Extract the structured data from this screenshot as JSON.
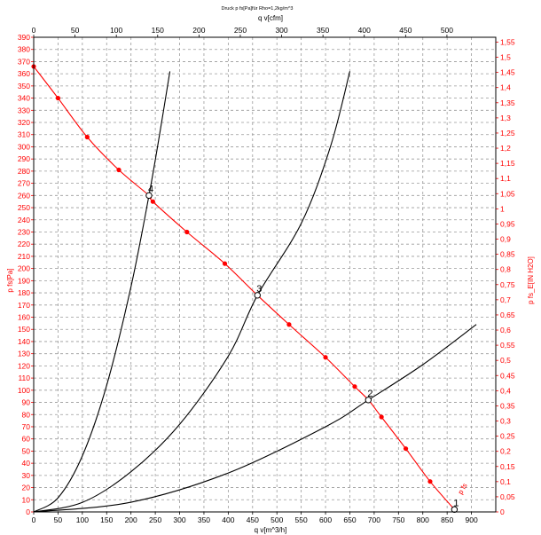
{
  "chart_data": {
    "type": "line",
    "title": "Druck p fs[Pa]für Rho=1,2kg/m^3",
    "xlabel": "q v[m^3/h]",
    "x2label": "q v[cfm]",
    "ylabel": "p fs[Pa]",
    "y2label": "p fs_E[IN H2O]",
    "xlim": [
      0,
      950
    ],
    "ylim": [
      0,
      390
    ],
    "x2lim": [
      0,
      559.1
    ],
    "y2lim": [
      0,
      1.566
    ],
    "x_ticks": [
      0,
      50,
      100,
      150,
      200,
      250,
      300,
      350,
      400,
      450,
      500,
      550,
      600,
      650,
      700,
      750,
      800,
      850,
      900
    ],
    "y_ticks": [
      0,
      10,
      20,
      30,
      40,
      50,
      60,
      70,
      80,
      90,
      100,
      110,
      120,
      130,
      140,
      150,
      160,
      170,
      180,
      190,
      200,
      210,
      220,
      230,
      240,
      250,
      260,
      270,
      280,
      290,
      300,
      310,
      320,
      330,
      340,
      350,
      360,
      370,
      380,
      390
    ],
    "x2_ticks": [
      0,
      50,
      100,
      150,
      200,
      250,
      300,
      350,
      400,
      450,
      500
    ],
    "y2_ticks": [
      "0",
      "0,05",
      "0,1",
      "0,15",
      "0,2",
      "0,25",
      "0,3",
      "0,35",
      "0,4",
      "0,45",
      "0,5",
      "0,55",
      "0,6",
      "0,65",
      "0,7",
      "0,75",
      "0,8",
      "0,85",
      "0,9",
      "0,95",
      "1",
      "1,05",
      "1,1",
      "1,15",
      "1,2",
      "1,25",
      "1,3",
      "1,35",
      "1,4",
      "1,45",
      "1,5",
      "1,55"
    ],
    "grid": true,
    "fan_curve": {
      "label": "p fs",
      "color": "#ff0000",
      "x": [
        0,
        50,
        110,
        175,
        237,
        245,
        315,
        393,
        460,
        525,
        600,
        660,
        688,
        715,
        765,
        815,
        865
      ],
      "y": [
        366,
        340,
        308,
        281,
        260,
        255,
        230,
        204,
        178,
        154,
        127,
        103,
        92,
        78,
        52,
        25,
        2
      ]
    },
    "system_curves": [
      {
        "x": [
          0,
          50,
          100,
          150,
          200,
          237,
          260,
          280
        ],
        "y": [
          0,
          11.6,
          46,
          104,
          185,
          260,
          313,
          362
        ]
      },
      {
        "x": [
          0,
          100,
          200,
          300,
          400,
          460,
          550,
          610,
          650
        ],
        "y": [
          0,
          7.8,
          33,
          72,
          128,
          178,
          237,
          300,
          362
        ]
      },
      {
        "x": [
          0,
          200,
          400,
          600,
          688,
          800,
          910
        ],
        "y": [
          0,
          8,
          32,
          70,
          92,
          121,
          154
        ]
      }
    ],
    "operating_points": [
      {
        "label": "1",
        "x": 865,
        "y": 2
      },
      {
        "label": "2",
        "x": 688,
        "y": 92
      },
      {
        "label": "3",
        "x": 460,
        "y": 178
      },
      {
        "label": "4",
        "x": 237,
        "y": 260
      }
    ],
    "colors": {
      "fan": "#ff0000",
      "system": "#000000",
      "left_axis": "#ff0000",
      "right_axis": "#ff0000",
      "bottom_axis": "#000000"
    }
  }
}
